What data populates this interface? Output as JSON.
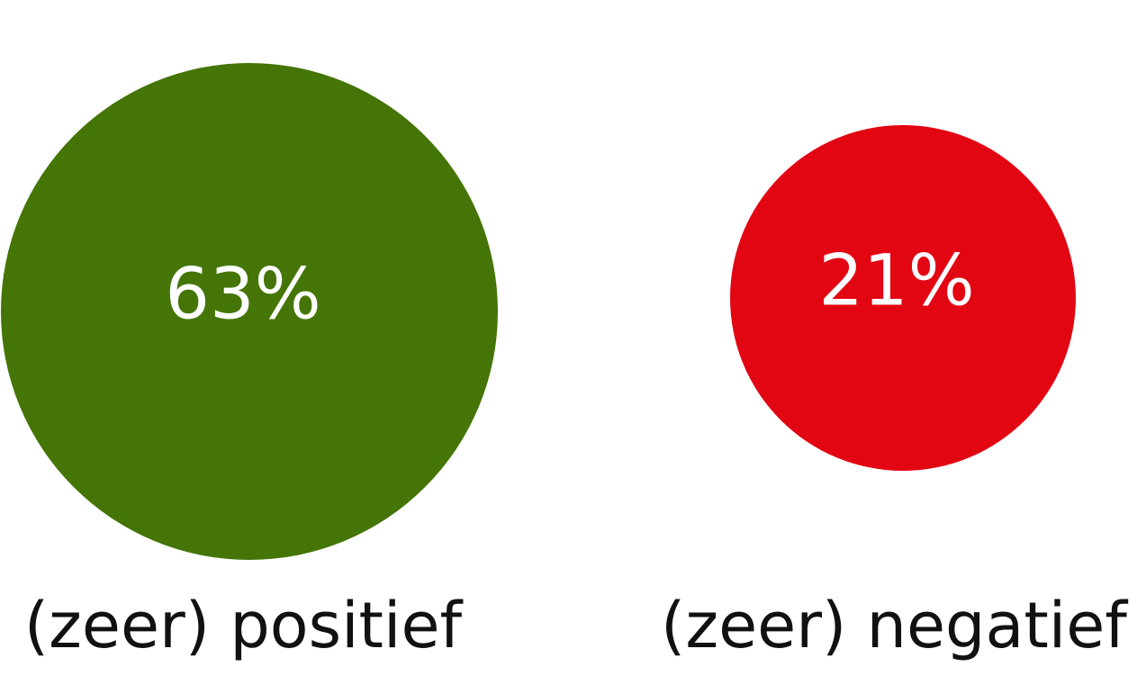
{
  "chart_data": {
    "type": "bubble",
    "categories": [
      "(zeer) positief",
      "(zeer) negatief"
    ],
    "values": [
      63,
      21
    ],
    "value_labels": [
      "63%",
      "21%"
    ],
    "colors": [
      "#447506",
      "#e20613"
    ]
  }
}
